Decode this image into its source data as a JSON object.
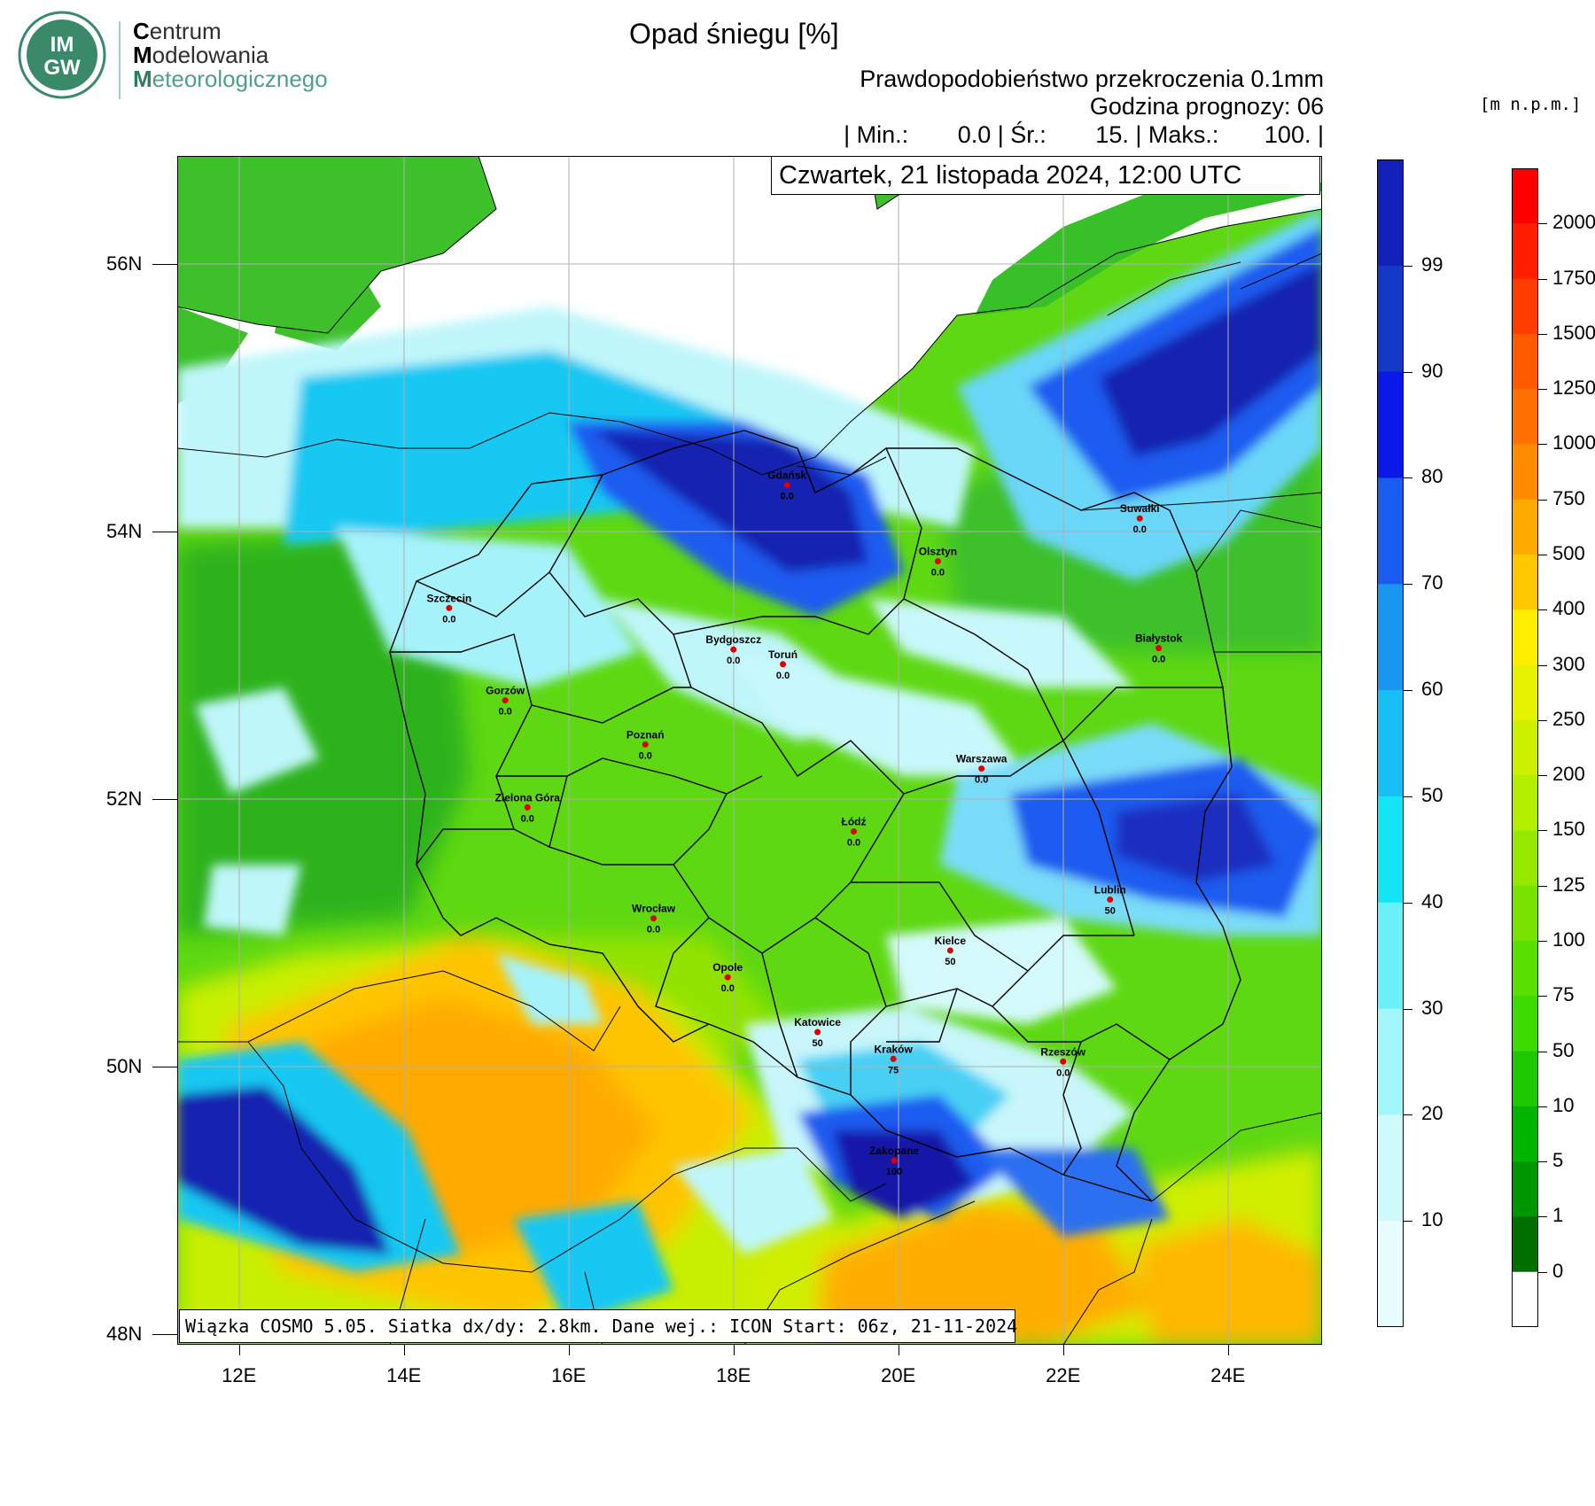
{
  "logo": {
    "badge_text_top": "IM",
    "badge_text_bottom": "GW",
    "line1_initial": "C",
    "line1_rest": "entrum",
    "line2_initial": "M",
    "line2_rest": "odelowania",
    "line3_initial": "M",
    "line3_rest": "eteorologicznego",
    "colors": {
      "green": "#4fa184",
      "dark_green": "#2d7d5e",
      "ring": "#3a8a6a"
    }
  },
  "header": {
    "title": "Opad śniegu [%]",
    "subtitle": "Prawdopodobieństwo przekroczenia 0.1mm",
    "forecast_hour": "Godzina prognozy: 06",
    "stats": {
      "min_label": "| Min.:",
      "min_value": "0.0",
      "avg_label": "| Śr.:",
      "avg_value": "15.",
      "max_label": "| Maks.:",
      "max_value": "100.",
      "end": "|"
    },
    "unit_label": "[m n.p.m.]"
  },
  "map": {
    "date": "Czwartek, 21 listopada 2024, 12:00 UTC",
    "info": "Wiązka COSMO 5.05. Siatka dx/dy: 2.8km. Dane wej.: ICON Start: 06z, 21-11-2024",
    "lat_ticks": [
      "56N",
      "54N",
      "52N",
      "50N",
      "48N"
    ],
    "lon_ticks": [
      "12E",
      "14E",
      "16E",
      "18E",
      "20E",
      "22E",
      "24E"
    ],
    "cities": [
      {
        "name": "Gdańsk",
        "value": "0.0",
        "lon": 18.65,
        "lat": 54.35
      },
      {
        "name": "Suwałki",
        "value": "0.0",
        "lon": 22.93,
        "lat": 54.1
      },
      {
        "name": "Olsztyn",
        "value": "0.0",
        "lon": 20.48,
        "lat": 53.78
      },
      {
        "name": "Szczecin",
        "value": "0.0",
        "lon": 14.55,
        "lat": 53.43
      },
      {
        "name": "Bydgoszcz",
        "value": "0.0",
        "lon": 18.0,
        "lat": 53.12
      },
      {
        "name": "Toruń",
        "value": "0.0",
        "lon": 18.6,
        "lat": 53.01
      },
      {
        "name": "Białystok",
        "value": "0.0",
        "lon": 23.16,
        "lat": 53.13
      },
      {
        "name": "Gorzów",
        "value": "0.0",
        "lon": 15.23,
        "lat": 52.74
      },
      {
        "name": "Poznań",
        "value": "0.0",
        "lon": 16.93,
        "lat": 52.41
      },
      {
        "name": "Warszawa",
        "value": "0.0",
        "lon": 21.01,
        "lat": 52.23
      },
      {
        "name": "Zielona Góra",
        "value": "0.0",
        "lon": 15.5,
        "lat": 51.94
      },
      {
        "name": "Łódź",
        "value": "0.0",
        "lon": 19.46,
        "lat": 51.76
      },
      {
        "name": "Lublin",
        "value": "50",
        "lon": 22.57,
        "lat": 51.25
      },
      {
        "name": "Wrocław",
        "value": "0.0",
        "lon": 17.03,
        "lat": 51.11
      },
      {
        "name": "Kielce",
        "value": "50",
        "lon": 20.63,
        "lat": 50.87
      },
      {
        "name": "Opole",
        "value": "0.0",
        "lon": 17.93,
        "lat": 50.67
      },
      {
        "name": "Katowice",
        "value": "50",
        "lon": 19.02,
        "lat": 50.26
      },
      {
        "name": "Kraków",
        "value": "75",
        "lon": 19.94,
        "lat": 50.06
      },
      {
        "name": "Rzeszów",
        "value": "0.0",
        "lon": 22.0,
        "lat": 50.04
      },
      {
        "name": "Zakopane",
        "value": "100",
        "lon": 19.95,
        "lat": 49.3
      }
    ],
    "city_dot_color": "#e00000"
  },
  "colorbar_snow": {
    "labels": [
      "99",
      "90",
      "80",
      "70",
      "60",
      "50",
      "40",
      "30",
      "20",
      "10"
    ],
    "colors": [
      "#1020b8",
      "#1438c8",
      "#0a18e8",
      "#1a5cf0",
      "#1896f0",
      "#16c0f4",
      "#12e6f4",
      "#6af0f8",
      "#a2f6fa",
      "#cffafc",
      "#e8fdfe"
    ]
  },
  "colorbar_height": {
    "labels": [
      "2000",
      "1750",
      "1500",
      "1250",
      "1000",
      "750",
      "500",
      "400",
      "300",
      "250",
      "200",
      "150",
      "125",
      "100",
      "75",
      "50",
      "10",
      "5",
      "1",
      "0"
    ],
    "colors": [
      "#ff0000",
      "#ff1e00",
      "#ff3c00",
      "#ff5a00",
      "#ff7000",
      "#ff8c00",
      "#ffaa00",
      "#ffc800",
      "#ffee00",
      "#e6f200",
      "#cdf000",
      "#b4ee00",
      "#96e800",
      "#78e200",
      "#5ae000",
      "#3cdc00",
      "#1ec800",
      "#00b400",
      "#009600",
      "#006e00",
      "#ffffff"
    ]
  }
}
